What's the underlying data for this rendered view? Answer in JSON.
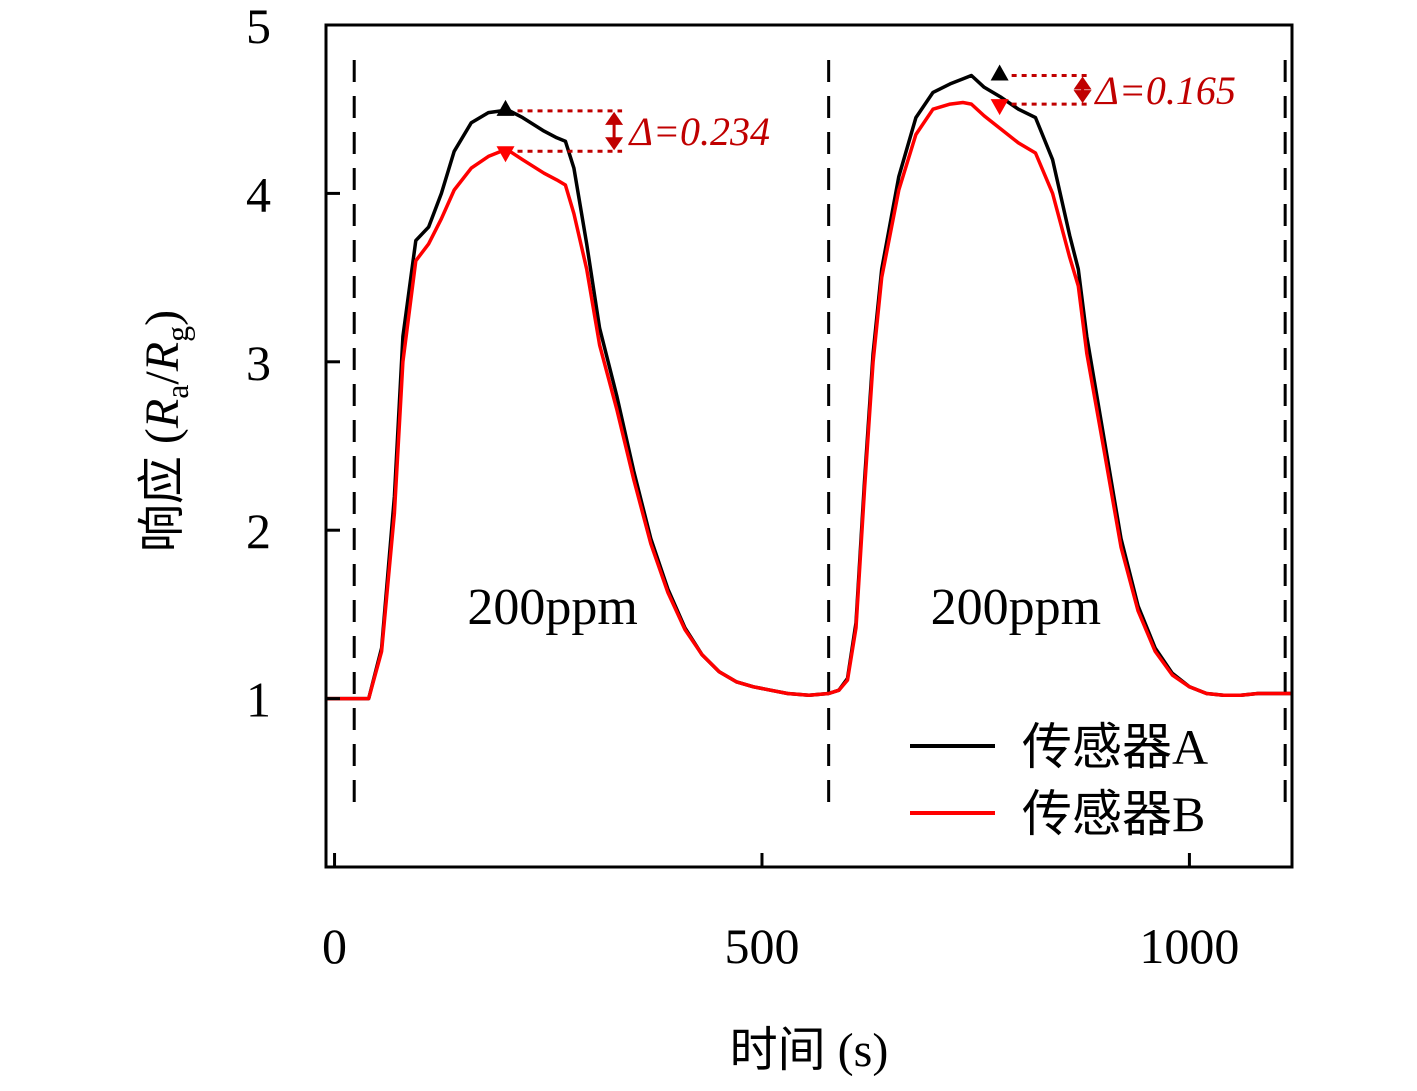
{
  "chart_data": {
    "type": "line",
    "xlabel": "时间 (s)",
    "ylabel": "响应 (R_a/R_g)",
    "ylabel_parts": {
      "prefix": "响应 (",
      "r1": "R",
      "sub1": "a",
      "slash": "/",
      "r2": "R",
      "sub2": "g",
      "suffix": ")"
    },
    "xlim": [
      -10,
      1120
    ],
    "ylim": [
      0.0,
      5.0
    ],
    "xticks": [
      0,
      500,
      1000
    ],
    "xtick_labels": [
      "0",
      "500",
      "1000"
    ],
    "yticks": [
      1,
      2,
      3,
      4,
      5
    ],
    "ytick_labels": [
      "1",
      "2",
      "3",
      "4",
      "5"
    ],
    "grid": false,
    "legend_position": "bottom-right",
    "exposure_marks_x": [
      23,
      578,
      1112
    ],
    "exposure_labels": [
      {
        "text": "200ppm",
        "x": 255,
        "y": 1.55
      },
      {
        "text": "200ppm",
        "x": 797,
        "y": 1.55
      }
    ],
    "colors": {
      "sensor_a": "#000000",
      "sensor_b": "#ff0000",
      "annotation": "#c00000"
    },
    "series": [
      {
        "name": "传感器A",
        "color": "#000000",
        "x": [
          -10,
          10,
          40,
          55,
          70,
          80,
          95,
          110,
          125,
          140,
          160,
          180,
          195,
          205,
          220,
          245,
          260,
          270,
          280,
          295,
          310,
          330,
          350,
          370,
          390,
          410,
          430,
          450,
          470,
          490,
          510,
          530,
          555,
          578,
          590,
          600,
          610,
          620,
          630,
          640,
          660,
          680,
          700,
          720,
          735,
          745,
          760,
          780,
          800,
          820,
          840,
          860,
          870,
          880,
          900,
          920,
          940,
          960,
          980,
          1000,
          1020,
          1040,
          1060,
          1080,
          1100,
          1120
        ],
        "y": [
          1.0,
          1.0,
          1.0,
          1.3,
          2.2,
          3.15,
          3.72,
          3.8,
          4.0,
          4.25,
          4.42,
          4.48,
          4.49,
          4.49,
          4.45,
          4.37,
          4.33,
          4.31,
          4.15,
          3.7,
          3.2,
          2.8,
          2.35,
          1.95,
          1.65,
          1.42,
          1.26,
          1.16,
          1.1,
          1.07,
          1.05,
          1.03,
          1.02,
          1.03,
          1.05,
          1.12,
          1.45,
          2.3,
          3.05,
          3.55,
          4.1,
          4.45,
          4.6,
          4.65,
          4.68,
          4.7,
          4.63,
          4.57,
          4.5,
          4.45,
          4.2,
          3.75,
          3.55,
          3.15,
          2.55,
          1.95,
          1.55,
          1.3,
          1.15,
          1.07,
          1.03,
          1.02,
          1.02,
          1.03,
          1.03,
          1.03
        ]
      },
      {
        "name": "传感器B",
        "color": "#ff0000",
        "x": [
          -10,
          10,
          40,
          55,
          70,
          80,
          95,
          110,
          125,
          140,
          160,
          180,
          195,
          205,
          220,
          245,
          260,
          270,
          280,
          295,
          310,
          330,
          350,
          370,
          390,
          410,
          430,
          450,
          470,
          490,
          510,
          530,
          555,
          578,
          590,
          600,
          610,
          620,
          630,
          640,
          660,
          680,
          700,
          720,
          735,
          745,
          760,
          780,
          800,
          820,
          840,
          860,
          870,
          880,
          900,
          920,
          940,
          960,
          980,
          1000,
          1020,
          1040,
          1060,
          1080,
          1100,
          1120
        ],
        "y": [
          1.0,
          1.0,
          1.0,
          1.28,
          2.1,
          3.0,
          3.6,
          3.7,
          3.85,
          4.02,
          4.15,
          4.22,
          4.25,
          4.25,
          4.2,
          4.12,
          4.08,
          4.05,
          3.88,
          3.55,
          3.1,
          2.72,
          2.3,
          1.92,
          1.63,
          1.41,
          1.26,
          1.16,
          1.1,
          1.07,
          1.05,
          1.03,
          1.02,
          1.03,
          1.05,
          1.11,
          1.42,
          2.25,
          3.0,
          3.5,
          4.02,
          4.35,
          4.5,
          4.53,
          4.54,
          4.53,
          4.46,
          4.38,
          4.3,
          4.24,
          4.0,
          3.62,
          3.45,
          3.05,
          2.48,
          1.9,
          1.52,
          1.28,
          1.14,
          1.07,
          1.03,
          1.02,
          1.02,
          1.03,
          1.03,
          1.03
        ]
      }
    ],
    "annotations": [
      {
        "x": 200,
        "y_top": 4.49,
        "y_bottom": 4.25,
        "label": "Δ=0.234",
        "arrow_x": 327,
        "label_x": 345
      },
      {
        "x": 778,
        "y_top": 4.7,
        "y_bottom": 4.53,
        "label": "Δ=0.165",
        "arrow_x": 875,
        "label_x": 890
      }
    ]
  }
}
